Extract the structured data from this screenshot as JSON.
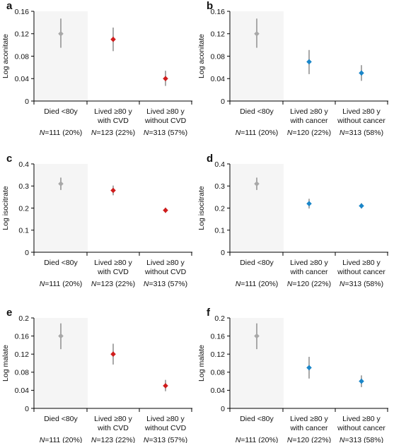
{
  "colors": {
    "grey": "#a8a8a8",
    "red": "#d01c1c",
    "blue": "#1a86c9",
    "shade": "#f5f5f5",
    "axis": "#000000"
  },
  "chart_data": [
    {
      "panel": "a",
      "type": "scatter",
      "ylabel": "Log aconitate",
      "ylim": [
        0,
        0.16
      ],
      "yticks": [
        "0",
        "0.04",
        "0.08",
        "0.12",
        "0.16"
      ],
      "ytick_values": [
        0,
        0.04,
        0.08,
        0.12,
        0.16
      ],
      "categories": [
        {
          "line1": "Died <80y",
          "line2": "",
          "n_label": "N=111 (20%)"
        },
        {
          "line1": "Lived ≥80 y",
          "line2": "with CVD",
          "n_label": "N=123 (22%)"
        },
        {
          "line1": "Lived ≥80 y",
          "line2": "without CVD",
          "n_label": "N=313 (57%)"
        }
      ],
      "values": [
        0.12,
        0.11,
        0.04
      ],
      "err_low": [
        0.095,
        0.089,
        0.027
      ],
      "err_high": [
        0.147,
        0.131,
        0.054
      ],
      "point_colors": [
        "grey",
        "red",
        "red"
      ]
    },
    {
      "panel": "b",
      "type": "scatter",
      "ylabel": "Log aconitate",
      "ylim": [
        0,
        0.16
      ],
      "yticks": [
        "0",
        "0.04",
        "0.08",
        "0.12",
        "0.16"
      ],
      "ytick_values": [
        0,
        0.04,
        0.08,
        0.12,
        0.16
      ],
      "categories": [
        {
          "line1": "Died <80y",
          "line2": "",
          "n_label": "N=111 (20%)"
        },
        {
          "line1": "Lived ≥80 y",
          "line2": "with cancer",
          "n_label": "N=120 (22%)"
        },
        {
          "line1": "Lived ≥80 y",
          "line2": "without cancer",
          "n_label": "N=313 (58%)"
        }
      ],
      "values": [
        0.12,
        0.07,
        0.05
      ],
      "err_low": [
        0.095,
        0.048,
        0.036
      ],
      "err_high": [
        0.147,
        0.091,
        0.064
      ],
      "point_colors": [
        "grey",
        "blue",
        "blue"
      ]
    },
    {
      "panel": "c",
      "type": "scatter",
      "ylabel": "Log isocitrate",
      "ylim": [
        0,
        0.4
      ],
      "yticks": [
        "0",
        "0.1",
        "0.2",
        "0.3",
        "0.4"
      ],
      "ytick_values": [
        0,
        0.1,
        0.2,
        0.3,
        0.4
      ],
      "categories": [
        {
          "line1": "Died <80y",
          "line2": "",
          "n_label": "N=111 (20%)"
        },
        {
          "line1": "Lived ≥80 y",
          "line2": "with CVD",
          "n_label": "N=123 (22%)"
        },
        {
          "line1": "Lived ≥80 y",
          "line2": "without CVD",
          "n_label": "N=313 (57%)"
        }
      ],
      "values": [
        0.31,
        0.28,
        0.19
      ],
      "err_low": [
        0.282,
        0.258,
        0.178
      ],
      "err_high": [
        0.338,
        0.302,
        0.202
      ],
      "point_colors": [
        "grey",
        "red",
        "red"
      ]
    },
    {
      "panel": "d",
      "type": "scatter",
      "ylabel": "Log isocitrate",
      "ylim": [
        0,
        0.4
      ],
      "yticks": [
        "0",
        "0.1",
        "0.2",
        "0.3",
        "0.4"
      ],
      "ytick_values": [
        0,
        0.1,
        0.2,
        0.3,
        0.4
      ],
      "categories": [
        {
          "line1": "Died <80y",
          "line2": "",
          "n_label": "N=111 (20%)"
        },
        {
          "line1": "Lived ≥80 y",
          "line2": "with cancer",
          "n_label": "N=120 (22%)"
        },
        {
          "line1": "Lived ≥80 y",
          "line2": "without cancer",
          "n_label": "N=313 (58%)"
        }
      ],
      "values": [
        0.31,
        0.22,
        0.21
      ],
      "err_low": [
        0.282,
        0.198,
        0.198
      ],
      "err_high": [
        0.338,
        0.242,
        0.222
      ],
      "point_colors": [
        "grey",
        "blue",
        "blue"
      ]
    },
    {
      "panel": "e",
      "type": "scatter",
      "ylabel": "Log malate",
      "ylim": [
        0,
        0.2
      ],
      "yticks": [
        "0",
        "0.04",
        "0.08",
        "0.12",
        "0.16",
        "0.2"
      ],
      "ytick_values": [
        0,
        0.04,
        0.08,
        0.12,
        0.16,
        0.2
      ],
      "categories": [
        {
          "line1": "Died <80y",
          "line2": "",
          "n_label": "N=111 (20%)"
        },
        {
          "line1": "Lived ≥80 y",
          "line2": "with CVD",
          "n_label": "N=123 (22%)"
        },
        {
          "line1": "Lived ≥80 y",
          "line2": "without CVD",
          "n_label": "N=313 (57%)"
        }
      ],
      "values": [
        0.16,
        0.12,
        0.05
      ],
      "err_low": [
        0.131,
        0.097,
        0.038
      ],
      "err_high": [
        0.188,
        0.143,
        0.063
      ],
      "point_colors": [
        "grey",
        "red",
        "red"
      ]
    },
    {
      "panel": "f",
      "type": "scatter",
      "ylabel": "Log malate",
      "ylim": [
        0,
        0.2
      ],
      "yticks": [
        "0",
        "0.04",
        "0.08",
        "0.12",
        "0.16",
        "0.2"
      ],
      "ytick_values": [
        0,
        0.04,
        0.08,
        0.12,
        0.16,
        0.2
      ],
      "categories": [
        {
          "line1": "Died <80y",
          "line2": "",
          "n_label": "N=111 (20%)"
        },
        {
          "line1": "Lived ≥80 y",
          "line2": "with cancer",
          "n_label": "N=120 (22%)"
        },
        {
          "line1": "Lived ≥80 y",
          "line2": "without cancer",
          "n_label": "N=313 (58%)"
        }
      ],
      "values": [
        0.16,
        0.09,
        0.06
      ],
      "err_low": [
        0.131,
        0.066,
        0.047
      ],
      "err_high": [
        0.188,
        0.114,
        0.073
      ],
      "point_colors": [
        "grey",
        "blue",
        "blue"
      ]
    }
  ]
}
